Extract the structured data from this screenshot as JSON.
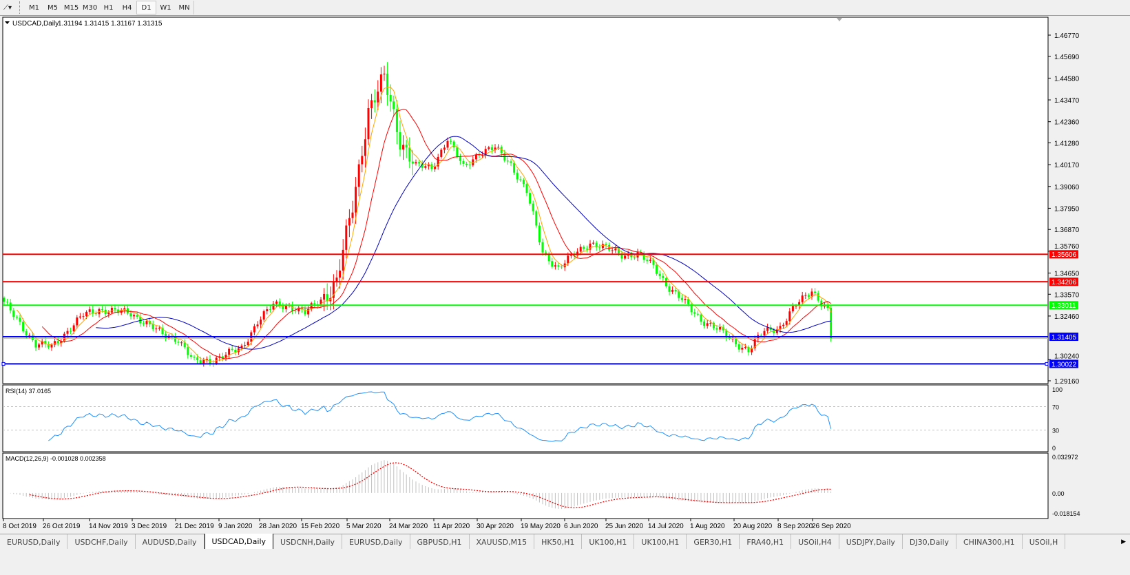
{
  "toolbar": {
    "timeframes": [
      "M1",
      "M5",
      "M15",
      "M30",
      "H1",
      "H4",
      "D1",
      "W1",
      "MN"
    ],
    "active_timeframe": "D1",
    "tool_icon": "line-studies-icon"
  },
  "chart": {
    "header": "USDCAD,Daily",
    "ohlc": "1.31194 1.31415 1.31167 1.31315",
    "price_ticks": [
      "1.46770",
      "1.45690",
      "1.44580",
      "1.43470",
      "1.42360",
      "1.41280",
      "1.40170",
      "1.39060",
      "1.37950",
      "1.36870",
      "1.35760",
      "1.34650",
      "1.33570",
      "1.32460",
      "1.30240",
      "1.29160"
    ],
    "hlines": [
      {
        "price": 1.35606,
        "label": "1.35606",
        "color": "#ff0000"
      },
      {
        "price": 1.34206,
        "label": "1.34206",
        "color": "#ff0000"
      },
      {
        "price": 1.33011,
        "label": "1.33011",
        "color": "#00ff00"
      },
      {
        "price": 1.31405,
        "label": "1.31405",
        "color": "#0000ff"
      },
      {
        "price": 1.30022,
        "label": "1.30022",
        "color": "#0000ff"
      }
    ],
    "bid_price": 1.31315,
    "colors": {
      "bull": "#ff0000",
      "bear": "#00ff00",
      "ma_fast": "#ffa500",
      "ma_mid": "#ff0000",
      "ma_slow": "#0000c0"
    }
  },
  "rsi": {
    "label": "RSI(14) 37.0165",
    "ticks": [
      "100",
      "70",
      "30",
      "0"
    ],
    "color": "#1e90ff"
  },
  "macd": {
    "label": "MACD(12,26,9) -0.001028 0.002358",
    "ticks": [
      "0.032972",
      "0.00",
      "-0.018154"
    ],
    "signal_color": "#ff0000",
    "hist_color": "#c0c0c0"
  },
  "date_labels": [
    "8 Oct 2019",
    "26 Oct 2019",
    "14 Nov 2019",
    "3 Dec 2019",
    "21 Dec 2019",
    "9 Jan 2020",
    "28 Jan 2020",
    "15 Feb 2020",
    "5 Mar 2020",
    "24 Mar 2020",
    "11 Apr 2020",
    "30 Apr 2020",
    "19 May 2020",
    "6 Jun 2020",
    "25 Jun 2020",
    "14 Jul 2020",
    "1 Aug 2020",
    "20 Aug 2020",
    "8 Sep 2020",
    "26 Sep 2020"
  ],
  "tabs": [
    "EURUSD,Daily",
    "USDCHF,Daily",
    "AUDUSD,Daily",
    "USDCAD,Daily",
    "USDCNH,Daily",
    "EURUSD,Daily",
    "GBPUSD,H1",
    "XAUUSD,M15",
    "HK50,H1",
    "UK100,H1",
    "UK100,H1",
    "GER30,H1",
    "FRA40,H1",
    "USOil,H4",
    "USDJPY,Daily",
    "DJ30,Daily",
    "CHINA300,H1",
    "USOil,H"
  ],
  "active_tab": "USDCAD,Daily",
  "chart_data": {
    "type": "candlestick",
    "symbol": "USDCAD",
    "timeframe": "Daily",
    "ylim": [
      1.2916,
      1.4677
    ],
    "weekly_closes": [
      1.331,
      1.321,
      1.31,
      1.309,
      1.317,
      1.325,
      1.328,
      1.327,
      1.326,
      1.321,
      1.315,
      1.313,
      1.301,
      1.302,
      1.305,
      1.308,
      1.322,
      1.33,
      1.33,
      1.326,
      1.333,
      1.342,
      1.38,
      1.43,
      1.445,
      1.415,
      1.401,
      1.4,
      1.415,
      1.4,
      1.408,
      1.41,
      1.402,
      1.388,
      1.357,
      1.349,
      1.356,
      1.362,
      1.359,
      1.356,
      1.356,
      1.35,
      1.339,
      1.331,
      1.323,
      1.318,
      1.312,
      1.307,
      1.317,
      1.319,
      1.33,
      1.338,
      1.327,
      1.31315
    ],
    "last_close": 1.31315
  }
}
